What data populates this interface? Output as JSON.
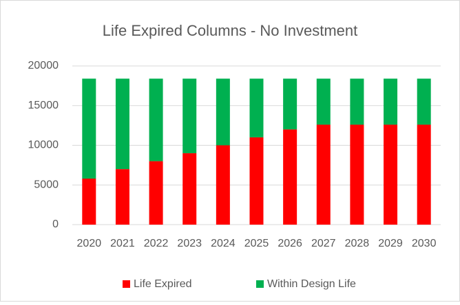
{
  "chart_data": {
    "type": "stacked_bar",
    "title": "Life Expired Columns - No Investment",
    "categories": [
      "2020",
      "2021",
      "2022",
      "2023",
      "2024",
      "2025",
      "2026",
      "2027",
      "2028",
      "2029",
      "2030"
    ],
    "series": [
      {
        "name": "Life Expired",
        "color": "#ff0000",
        "values": [
          5800,
          7000,
          8000,
          9000,
          10000,
          11000,
          12000,
          12600,
          12600,
          12600,
          12600
        ]
      },
      {
        "name": "Within Design Life",
        "color": "#00b050",
        "values": [
          12600,
          11400,
          10400,
          9400,
          8400,
          7400,
          6400,
          5800,
          5800,
          5800,
          5800
        ]
      }
    ],
    "ylim": [
      0,
      20000
    ],
    "yticks": [
      0,
      5000,
      10000,
      15000,
      20000
    ],
    "grid": true,
    "legend": "bottom"
  }
}
